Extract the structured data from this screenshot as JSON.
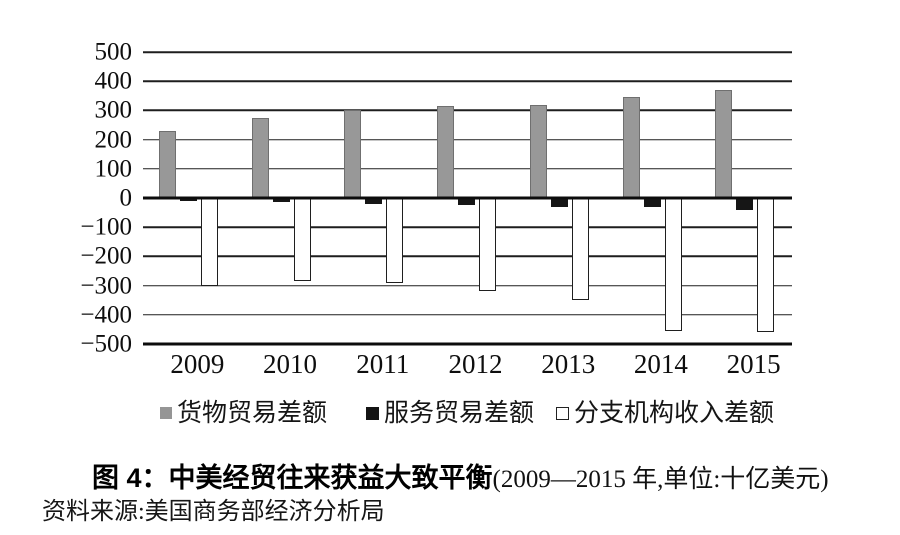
{
  "figure": {
    "caption_label": "图 4：",
    "caption_title": "中美经贸往来获益大致平衡",
    "caption_note": "(2009—2015 年,单位:十亿美元)",
    "source": "资料来源:美国商务部经济分析局"
  },
  "chart_data": {
    "type": "bar",
    "title": "图 4：中美经贸往来获益大致平衡(2009—2015 年,单位:十亿美元)",
    "unit": "十亿美元",
    "source": "资料来源:美国商务部经济分析局",
    "categories": [
      "2009",
      "2010",
      "2011",
      "2012",
      "2013",
      "2014",
      "2015"
    ],
    "series": [
      {
        "key": "goods",
        "name": "货物贸易差额",
        "color": "#989898",
        "border": "#6f6f6f",
        "border_width": 1,
        "values": [
          230,
          275,
          300,
          315,
          320,
          345,
          370
        ]
      },
      {
        "key": "services",
        "name": "服务贸易差额",
        "color": "#161616",
        "border": "#161616",
        "border_width": 1,
        "values": [
          -10,
          -15,
          -20,
          -25,
          -30,
          -30,
          -40
        ]
      },
      {
        "key": "branch",
        "name": "分支机构收入差额",
        "color": "#ffffff",
        "border": "#1f1f1f",
        "border_width": 1.5,
        "values": [
          -300,
          -285,
          -290,
          -320,
          -350,
          -455,
          -460
        ]
      }
    ],
    "ylim": [
      -500,
      500
    ],
    "yticks": [
      500,
      400,
      300,
      200,
      100,
      0,
      -100,
      -200,
      -300,
      -400,
      -500
    ],
    "grid": true,
    "legend_position": "bottom",
    "xlabel": "",
    "ylabel": ""
  }
}
